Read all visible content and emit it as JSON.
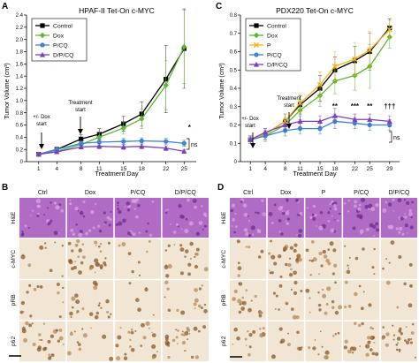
{
  "panels": {
    "A": {
      "letter": "A",
      "title": "HPAF-II Tet-On c-MYC",
      "ylabel": "Tumor Volume (cm³)",
      "xlabel": "Treatment Day",
      "arrow1_lines": [
        "+/- Dox",
        "start"
      ],
      "arrow2_lines": [
        "Treatment",
        "start"
      ],
      "ns_label": "ns",
      "sig_marks": [
        {
          "x": 25,
          "text": "*"
        }
      ]
    },
    "C": {
      "letter": "C",
      "title": "PDX220 Tet-On c-MYC",
      "ylabel": "Tumor Volume (cm³)",
      "xlabel": "Treatment Day",
      "arrow1_lines": [
        "+/- Dox",
        "start"
      ],
      "arrow2_lines": [
        "Treatment",
        "start"
      ],
      "ns_label": "ns",
      "sig_marks": [
        {
          "x": 18,
          "text": "**"
        },
        {
          "x": 22,
          "text": "***"
        },
        {
          "x": 25,
          "text": "**"
        },
        {
          "x": 29,
          "text": "†††"
        }
      ]
    },
    "B": {
      "letter": "B",
      "cols": [
        "Ctrl",
        "Dox",
        "P/CQ",
        "D/P/CQ"
      ],
      "rows": [
        "H&E",
        "c-MYC",
        "pRB",
        "p62"
      ]
    },
    "D": {
      "letter": "D",
      "cols": [
        "Ctrl",
        "Dox",
        "P",
        "P/CQ",
        "D/P/CQ"
      ],
      "rows": [
        "H&E",
        "c-MYC",
        "pRB",
        "p62"
      ]
    }
  },
  "colors": {
    "control": "#000000",
    "dox": "#5cb82e",
    "p": "#f2b41c",
    "pcq": "#3a86d6",
    "dpcq": "#7c3fbf",
    "he": "#b06cc4",
    "ihc_bg": "#f1e6d4",
    "ihc_brown": "#8b5a2b"
  },
  "chart_data": [
    {
      "panel": "A",
      "type": "line",
      "title": "HPAF-II Tet-On c-MYC",
      "xlabel": "Treatment Day",
      "ylabel": "Tumor Volume (cm³)",
      "x": [
        1,
        4,
        8,
        11,
        15,
        18,
        22,
        25
      ],
      "xticks": [
        1,
        4,
        8,
        11,
        15,
        18,
        22,
        25
      ],
      "xlim": [
        -1,
        27
      ],
      "ylim": [
        0,
        2.4
      ],
      "yticks": [
        0,
        0.2,
        0.4,
        0.6,
        0.8,
        1.0,
        1.2,
        1.4,
        1.6,
        1.8,
        2.0,
        2.2,
        2.4
      ],
      "legend_position": "top-left",
      "series": [
        {
          "name": "Control",
          "key": "control",
          "marker": "square",
          "values": [
            0.12,
            0.2,
            0.37,
            0.45,
            0.62,
            0.78,
            1.35,
            1.85
          ],
          "errors": [
            0.02,
            0.04,
            0.07,
            0.09,
            0.12,
            0.2,
            0.55,
            0.65
          ]
        },
        {
          "name": "Dox",
          "key": "dox",
          "marker": "diamond",
          "values": [
            0.12,
            0.17,
            0.28,
            0.4,
            0.55,
            0.7,
            1.25,
            1.88
          ],
          "errors": [
            0.02,
            0.03,
            0.05,
            0.08,
            0.1,
            0.16,
            0.4,
            0.6
          ]
        },
        {
          "name": "P/CQ",
          "key": "pcq",
          "marker": "circle",
          "values": [
            0.12,
            0.2,
            0.3,
            0.32,
            0.33,
            0.34,
            0.33,
            0.3
          ],
          "errors": [
            0.02,
            0.03,
            0.04,
            0.05,
            0.05,
            0.05,
            0.05,
            0.05
          ]
        },
        {
          "name": "D/P/CQ",
          "key": "dpcq",
          "marker": "triangle",
          "values": [
            0.12,
            0.16,
            0.24,
            0.25,
            0.24,
            0.25,
            0.22,
            0.17
          ],
          "errors": [
            0.02,
            0.02,
            0.03,
            0.04,
            0.04,
            0.04,
            0.04,
            0.03
          ]
        }
      ]
    },
    {
      "panel": "C",
      "type": "line",
      "title": "PDX220 Tet-On c-MYC",
      "xlabel": "Treatment Day",
      "ylabel": "Tumor Volume (cm³)",
      "x": [
        1,
        4,
        8,
        11,
        15,
        18,
        22,
        25,
        29
      ],
      "xticks": [
        1,
        4,
        8,
        11,
        15,
        18,
        22,
        25,
        29
      ],
      "xlim": [
        -1,
        31
      ],
      "ylim": [
        0,
        0.8
      ],
      "yticks": [
        0,
        0.1,
        0.2,
        0.3,
        0.4,
        0.5,
        0.6,
        0.7,
        0.8
      ],
      "legend_position": "top-left",
      "series": [
        {
          "name": "Control",
          "key": "control",
          "marker": "square",
          "values": [
            0.12,
            0.15,
            0.22,
            0.31,
            0.4,
            0.5,
            0.55,
            0.6,
            0.73
          ],
          "errors": [
            0.02,
            0.03,
            0.04,
            0.05,
            0.07,
            0.07,
            0.08,
            0.1,
            0.05
          ]
        },
        {
          "name": "Dox",
          "key": "dox",
          "marker": "diamond",
          "values": [
            0.12,
            0.14,
            0.2,
            0.28,
            0.36,
            0.44,
            0.47,
            0.52,
            0.68
          ],
          "errors": [
            0.02,
            0.03,
            0.04,
            0.05,
            0.06,
            0.07,
            0.08,
            0.12,
            0.06
          ]
        },
        {
          "name": "P",
          "key": "p",
          "marker": "cross",
          "values": [
            0.12,
            0.15,
            0.22,
            0.32,
            0.42,
            0.52,
            0.56,
            0.61,
            0.72
          ],
          "errors": [
            0.02,
            0.03,
            0.04,
            0.05,
            0.07,
            0.08,
            0.09,
            0.1,
            0.05
          ]
        },
        {
          "name": "P/CQ",
          "key": "pcq",
          "marker": "circle",
          "values": [
            0.12,
            0.14,
            0.17,
            0.18,
            0.18,
            0.22,
            0.21,
            0.2,
            0.2
          ],
          "errors": [
            0.02,
            0.02,
            0.03,
            0.03,
            0.03,
            0.04,
            0.03,
            0.03,
            0.03
          ]
        },
        {
          "name": "D/P/CQ",
          "key": "dpcq",
          "marker": "triangle",
          "values": [
            0.12,
            0.16,
            0.2,
            0.22,
            0.22,
            0.25,
            0.23,
            0.23,
            0.22
          ],
          "errors": [
            0.02,
            0.02,
            0.03,
            0.03,
            0.03,
            0.04,
            0.03,
            0.03,
            0.03
          ]
        }
      ]
    }
  ]
}
